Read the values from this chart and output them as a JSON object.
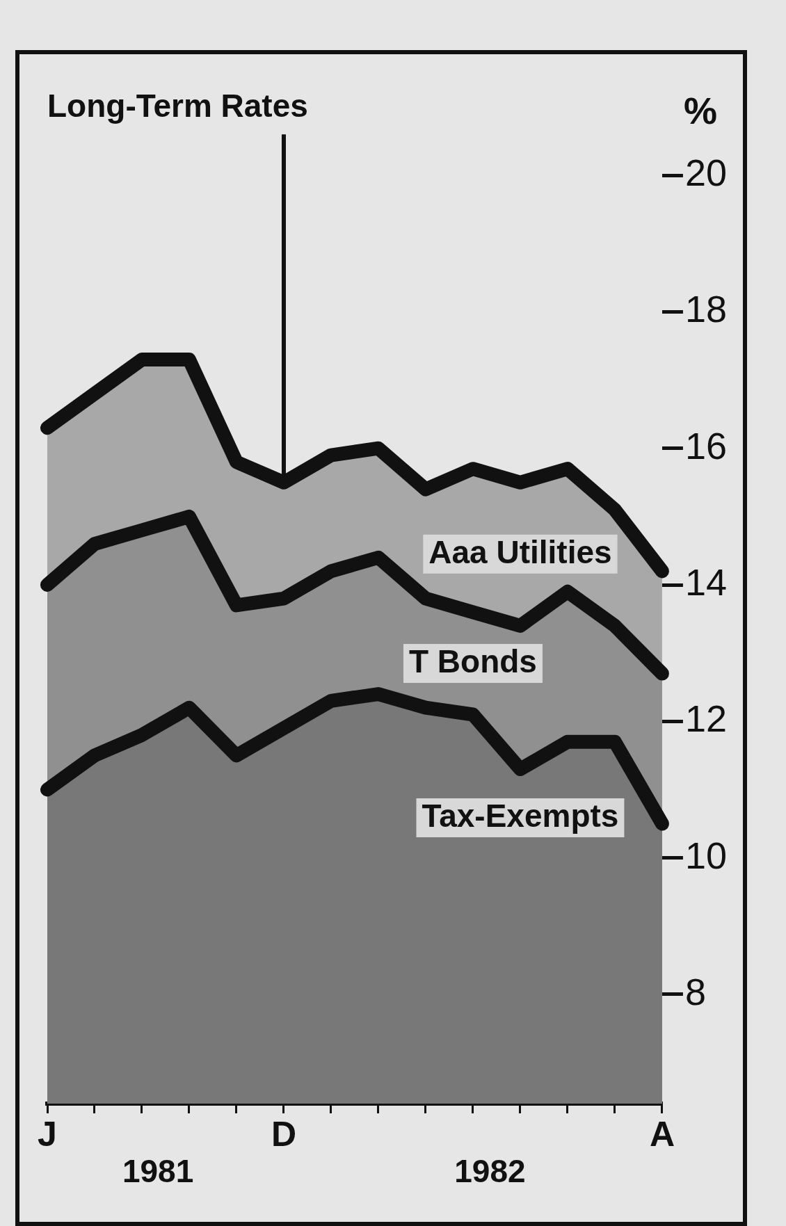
{
  "chart_data": {
    "type": "area",
    "title": "Long-Term Rates",
    "ylabel": "%",
    "categories": [
      "J",
      null,
      null,
      null,
      null,
      "D",
      null,
      null,
      null,
      null,
      null,
      null,
      null,
      "A"
    ],
    "series": [
      {
        "name": "Aaa Utilities",
        "color": "#111111",
        "values": [
          16.3,
          16.8,
          17.3,
          17.3,
          15.8,
          15.5,
          15.9,
          16.0,
          15.4,
          15.7,
          15.5,
          15.7,
          15.1,
          14.2
        ]
      },
      {
        "name": "T Bonds",
        "color": "#111111",
        "values": [
          14.0,
          14.6,
          14.8,
          15.0,
          13.7,
          13.8,
          14.2,
          14.4,
          13.8,
          13.6,
          13.4,
          13.9,
          13.4,
          12.7
        ]
      },
      {
        "name": "Tax-Exempts",
        "color": "#111111",
        "values": [
          11.0,
          11.5,
          11.8,
          12.2,
          11.5,
          11.9,
          12.3,
          12.4,
          12.2,
          12.1,
          11.3,
          11.7,
          11.7,
          10.5
        ]
      }
    ],
    "ylim": [
      6.4,
      20.6
    ],
    "yticks": [
      8,
      10,
      12,
      14,
      16,
      18,
      20
    ],
    "ref_lines": [
      {
        "axis": "x",
        "value": "D",
        "color": "#111111"
      }
    ],
    "annotations": [
      "1981",
      "1982"
    ],
    "grid": false,
    "legend": false,
    "marker": "none"
  }
}
